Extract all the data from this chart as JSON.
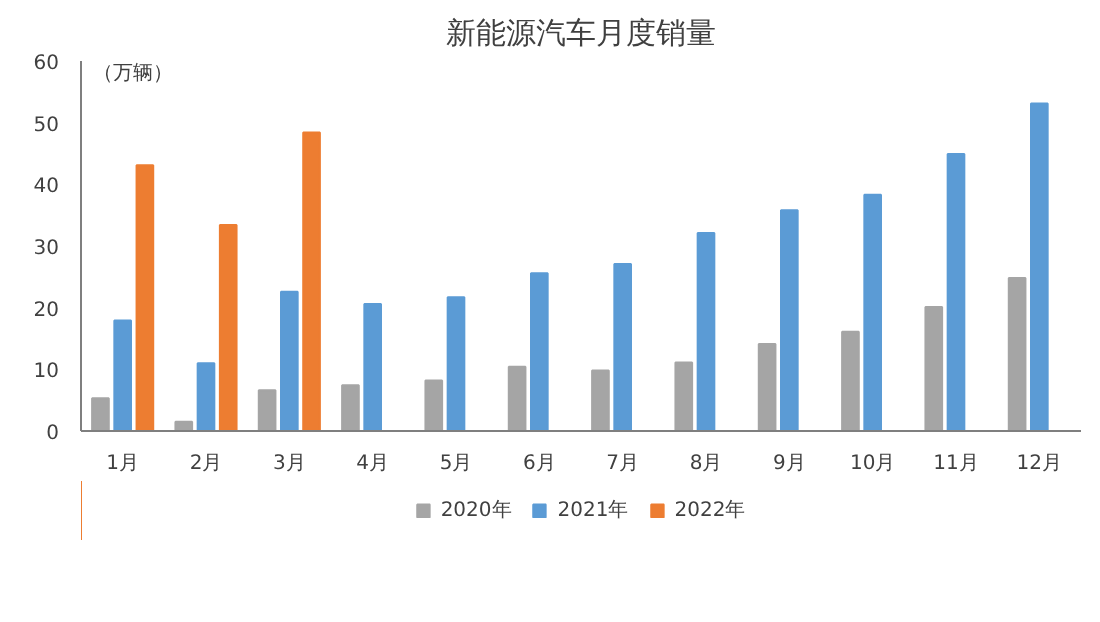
{
  "chart_data": {
    "type": "bar",
    "title": "新能源汽车月度销量",
    "ylabel": "（万辆）",
    "categories": [
      "1月",
      "2月",
      "3月",
      "4月",
      "5月",
      "6月",
      "7月",
      "8月",
      "9月",
      "10月",
      "11月",
      "12月"
    ],
    "series": [
      {
        "name": "2020年",
        "color": "#a5a5a5",
        "values": [
          5.3,
          1.5,
          6.6,
          7.4,
          8.2,
          10.4,
          9.8,
          11.1,
          14.1,
          16.1,
          20.1,
          24.8
        ]
      },
      {
        "name": "2021年",
        "color": "#5b9bd5",
        "values": [
          17.9,
          11.0,
          22.6,
          20.6,
          21.7,
          25.6,
          27.1,
          32.1,
          35.8,
          38.3,
          44.9,
          53.1
        ]
      },
      {
        "name": "2022年",
        "color": "#ed7d31",
        "values": [
          43.1,
          33.4,
          48.4,
          null,
          null,
          null,
          null,
          null,
          null,
          null,
          null,
          null
        ]
      }
    ],
    "ylim": [
      0,
      60
    ],
    "yticks": [
      0,
      10,
      20,
      30,
      40,
      50,
      60
    ],
    "grid": false,
    "legend": "bottom"
  }
}
